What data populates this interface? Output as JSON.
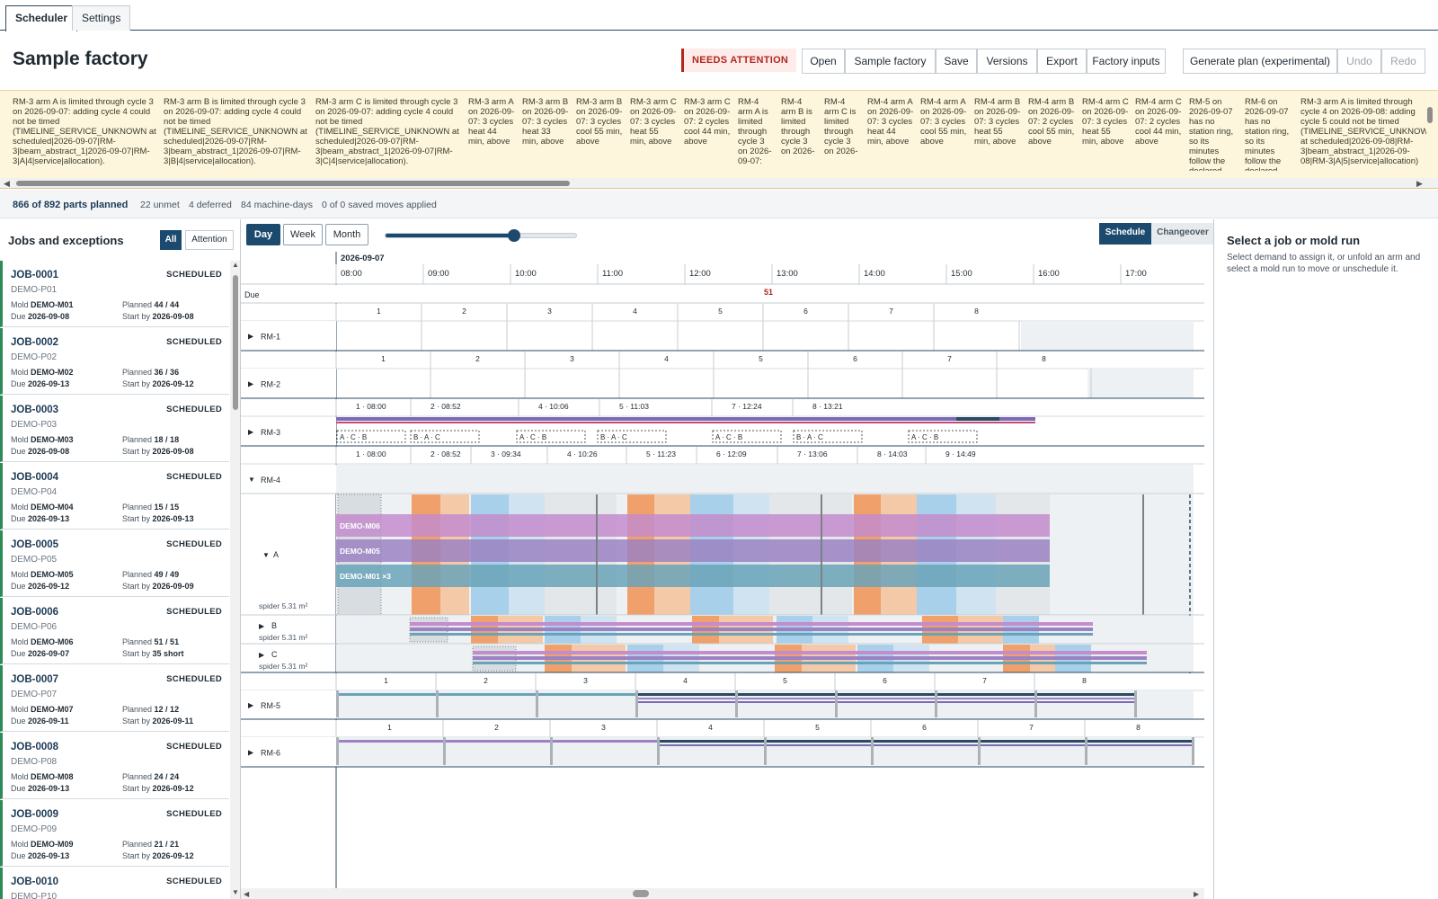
{
  "tabs": [
    {
      "label": "Scheduler"
    },
    {
      "label": "Settings"
    }
  ],
  "header": {
    "title": "Sample factory",
    "attention": "NEEDS ATTENTION",
    "buttons": [
      "Open",
      "Sample factory",
      "Save",
      "Versions",
      "Export",
      "Factory inputs",
      "Generate plan (experimental)",
      "Undo",
      "Redo"
    ]
  },
  "warnings": [
    "RM-3 arm A is limited through cycle 3 on 2026-09-07: adding cycle 4 could not be timed (TIMELINE_SERVICE_UNKNOWN at scheduled|2026-09-07|RM-3|beam_abstract_1|2026-09-07|RM-3|A|4|service|allocation).",
    "RM-3 arm B is limited through cycle 3 on 2026-09-07: adding cycle 4 could not be timed (TIMELINE_SERVICE_UNKNOWN at scheduled|2026-09-07|RM-3|beam_abstract_1|2026-09-07|RM-3|B|4|service|allocation).",
    "RM-3 arm C is limited through cycle 3 on 2026-09-07: adding cycle 4 could not be timed (TIMELINE_SERVICE_UNKNOWN at scheduled|2026-09-07|RM-3|beam_abstract_1|2026-09-07|RM-3|C|4|service|allocation).",
    "RM-3 arm A on 2026-09-07: 3 cycles heat 44 min, above",
    "RM-3 arm B on 2026-09-07: 3 cycles heat 33 min, above",
    "RM-3 arm B on 2026-09-07: 3 cycles cool 55 min, above",
    "RM-3 arm C on 2026-09-07: 3 cycles heat 55 min, above",
    "RM-3 arm C on 2026-09-07: 2 cycles cool 44 min, above",
    "RM-4 arm A is limited through cycle 3 on 2026-09-07:",
    "RM-4 arm B is limited through cycle 3 on 2026-",
    "RM-4 arm C is limited through cycle 3 on 2026-",
    "RM-4 arm A on 2026-09-07: 3 cycles heat 44 min, above",
    "RM-4 arm A on 2026-09-07: 3 cycles cool 55 min, above",
    "RM-4 arm B on 2026-09-07: 3 cycles heat 55 min, above",
    "RM-4 arm B on 2026-09-07: 2 cycles cool 55 min, above",
    "RM-4 arm C on 2026-09-07: 3 cycles heat 55 min, above",
    "RM-4 arm C on 2026-09-07: 2 cycles cool 44 min, above",
    "RM-5 on 2026-09-07 has no station ring, so its minutes follow the declared",
    "RM-6 on 2026-09-07 has no station ring, so its minutes follow the declared",
    "RM-3 arm A is limited through cycle 4 on 2026-09-08: adding cycle 5 could not be timed (TIMELINE_SERVICE_UNKNOWN at scheduled|2026-09-08|RM-3|beam_abstract_1|2026-09-08|RM-3|A|5|service|allocation)"
  ],
  "stats": {
    "planned": "866 of 892 parts planned",
    "unmet": "22 unmet",
    "deferred": "4 deferred",
    "machine_days": "84 machine-days",
    "moves": "0 of 0 saved moves applied"
  },
  "left": {
    "title": "Jobs and exceptions",
    "filters": [
      "All",
      "Attention"
    ],
    "labels": {
      "mold": "Mold",
      "due": "Due",
      "planned": "Planned",
      "start": "Start by"
    },
    "jobs": [
      {
        "id": "JOB-0001",
        "status": "SCHEDULED",
        "part": "DEMO-P01",
        "mold": "DEMO-M01",
        "due": "2026-09-08",
        "planned": "44 / 44",
        "start": "2026-09-08"
      },
      {
        "id": "JOB-0002",
        "status": "SCHEDULED",
        "part": "DEMO-P02",
        "mold": "DEMO-M02",
        "due": "2026-09-13",
        "planned": "36 / 36",
        "start": "2026-09-12"
      },
      {
        "id": "JOB-0003",
        "status": "SCHEDULED",
        "part": "DEMO-P03",
        "mold": "DEMO-M03",
        "due": "2026-09-08",
        "planned": "18 / 18",
        "start": "2026-09-08"
      },
      {
        "id": "JOB-0004",
        "status": "SCHEDULED",
        "part": "DEMO-P04",
        "mold": "DEMO-M04",
        "due": "2026-09-13",
        "planned": "15 / 15",
        "start": "2026-09-13"
      },
      {
        "id": "JOB-0005",
        "status": "SCHEDULED",
        "part": "DEMO-P05",
        "mold": "DEMO-M05",
        "due": "2026-09-12",
        "planned": "49 / 49",
        "start": "2026-09-09"
      },
      {
        "id": "JOB-0006",
        "status": "SCHEDULED",
        "part": "DEMO-P06",
        "mold": "DEMO-M06",
        "due": "2026-09-07",
        "planned": "51 / 51",
        "start": "35 short"
      },
      {
        "id": "JOB-0007",
        "status": "SCHEDULED",
        "part": "DEMO-P07",
        "mold": "DEMO-M07",
        "due": "2026-09-11",
        "planned": "12 / 12",
        "start": "2026-09-11"
      },
      {
        "id": "JOB-0008",
        "status": "SCHEDULED",
        "part": "DEMO-P08",
        "mold": "DEMO-M08",
        "due": "2026-09-13",
        "planned": "24 / 24",
        "start": "2026-09-12"
      },
      {
        "id": "JOB-0009",
        "status": "SCHEDULED",
        "part": "DEMO-P09",
        "mold": "DEMO-M09",
        "due": "2026-09-13",
        "planned": "21 / 21",
        "start": "2026-09-12"
      },
      {
        "id": "JOB-0010",
        "status": "SCHEDULED",
        "part": "DEMO-P10",
        "mold": "",
        "due": "",
        "planned": "",
        "start": ""
      }
    ]
  },
  "zoom": {
    "options": [
      "Day",
      "Week",
      "Month"
    ],
    "selected": "Day",
    "level": 0.69
  },
  "modes": {
    "schedule": "Schedule",
    "changeover": "Changeover"
  },
  "timeline": {
    "date": "2026-09-07",
    "hours": [
      "08:00",
      "09:00",
      "10:00",
      "11:00",
      "12:00",
      "13:00",
      "14:00",
      "15:00",
      "16:00",
      "17:00"
    ],
    "due_label": "Due",
    "due_count": "51",
    "machines": [
      {
        "name": "RM-1",
        "cycles": [
          "1",
          "2",
          "3",
          "4",
          "5",
          "6",
          "7",
          "8"
        ]
      },
      {
        "name": "RM-2",
        "cycles": [
          "1",
          "2",
          "3",
          "4",
          "5",
          "6",
          "7",
          "8"
        ]
      },
      {
        "name": "RM-3",
        "cycles": [
          "1 · 08:00",
          "2 · 08:52",
          "4 · 10:06",
          "5 · 11:03",
          "7 · 12:24",
          "8 · 13:21"
        ],
        "sequence": [
          "A · C · B",
          "B · A · C",
          "A · C · B",
          "B · A · C",
          "A · C · B",
          "B · A · C",
          "A · C · B"
        ]
      },
      {
        "name": "RM-4",
        "cycles": [
          "1 · 08:00",
          "2 · 08:52",
          "3 · 09:34",
          "4 · 10:26",
          "5 · 11:23",
          "6 · 12:09",
          "7 · 13:06",
          "8 · 14:03",
          "9 · 14:49"
        ],
        "arms": [
          {
            "name": "A",
            "area": "spider 5.31 m²",
            "molds": [
              "DEMO-M06",
              "DEMO-M05",
              "DEMO-M01 ×3"
            ]
          },
          {
            "name": "B",
            "area": "spider 5.31 m²"
          },
          {
            "name": "C",
            "area": "spider 5.31 m²"
          }
        ]
      },
      {
        "name": "RM-5",
        "cycles": [
          "1",
          "2",
          "3",
          "4",
          "5",
          "6",
          "7",
          "8"
        ]
      },
      {
        "name": "RM-6",
        "cycles": [
          "1",
          "2",
          "3",
          "4",
          "5",
          "6",
          "7",
          "8"
        ]
      }
    ]
  },
  "right": {
    "title": "Select a job or mold run",
    "desc": "Select demand to assign it, or unfold an arm and select a mold run to move or unschedule it."
  },
  "colors": {
    "accent": "#1c4a6e",
    "attention": "#b3261e",
    "heat": "#f0a06a",
    "cool": "#a8d0ea",
    "m06": "#c48ccc",
    "m05": "#9b82c2",
    "m01": "#6aa3b8"
  }
}
